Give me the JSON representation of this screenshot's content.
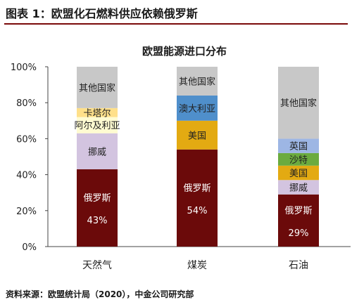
{
  "figure": {
    "title": "图表 1：欧盟化石燃料供应依赖俄罗斯",
    "source": "资料来源：欧盟统计局（2020），中金公司研究部"
  },
  "chart_data": {
    "type": "bar",
    "stacked": true,
    "title": "欧盟能源进口分布",
    "categories": [
      "天然气",
      "煤炭",
      "石油"
    ],
    "ylim": [
      0,
      100
    ],
    "yticks": [
      "0%",
      "20%",
      "40%",
      "60%",
      "80%",
      "100%"
    ],
    "grid": false,
    "segments": [
      [
        {
          "label": "俄罗斯",
          "value": 43,
          "value_label": "43%",
          "color": "#6b0a0a",
          "text_color": "#ffffff"
        },
        {
          "label": "挪威",
          "value": 20,
          "color": "#d3c4e0",
          "text_color": "#222222"
        },
        {
          "label": "阿尔及利亚",
          "value": 9,
          "color": "#fffbd1",
          "text_color": "#222222"
        },
        {
          "label": "卡塔尔",
          "value": 5,
          "color": "#ffe08a",
          "text_color": "#222222"
        },
        {
          "label": "其他国家",
          "value": 23,
          "color": "#c8c8c8",
          "text_color": "#222222"
        }
      ],
      [
        {
          "label": "俄罗斯",
          "value": 54,
          "value_label": "54%",
          "color": "#6b0a0a",
          "text_color": "#ffffff"
        },
        {
          "label": "美国",
          "value": 16,
          "color": "#e3aa12",
          "text_color": "#222222"
        },
        {
          "label": "澳大利亚",
          "value": 14,
          "color": "#4f8fcb",
          "text_color": "#222222"
        },
        {
          "label": "其他国家",
          "value": 16,
          "color": "#c8c8c8",
          "text_color": "#222222"
        }
      ],
      [
        {
          "label": "俄罗斯",
          "value": 29,
          "value_label": "29%",
          "color": "#6b0a0a",
          "text_color": "#ffffff"
        },
        {
          "label": "挪威",
          "value": 8,
          "color": "#d3c4e0",
          "text_color": "#222222"
        },
        {
          "label": "美国",
          "value": 8,
          "color": "#e3aa12",
          "text_color": "#222222"
        },
        {
          "label": "沙特",
          "value": 7,
          "color": "#6bab3f",
          "text_color": "#222222"
        },
        {
          "label": "英国",
          "value": 8,
          "color": "#9db6e4",
          "text_color": "#222222"
        },
        {
          "label": "其他国家",
          "value": 40,
          "color": "#c8c8c8",
          "text_color": "#222222"
        }
      ]
    ]
  }
}
